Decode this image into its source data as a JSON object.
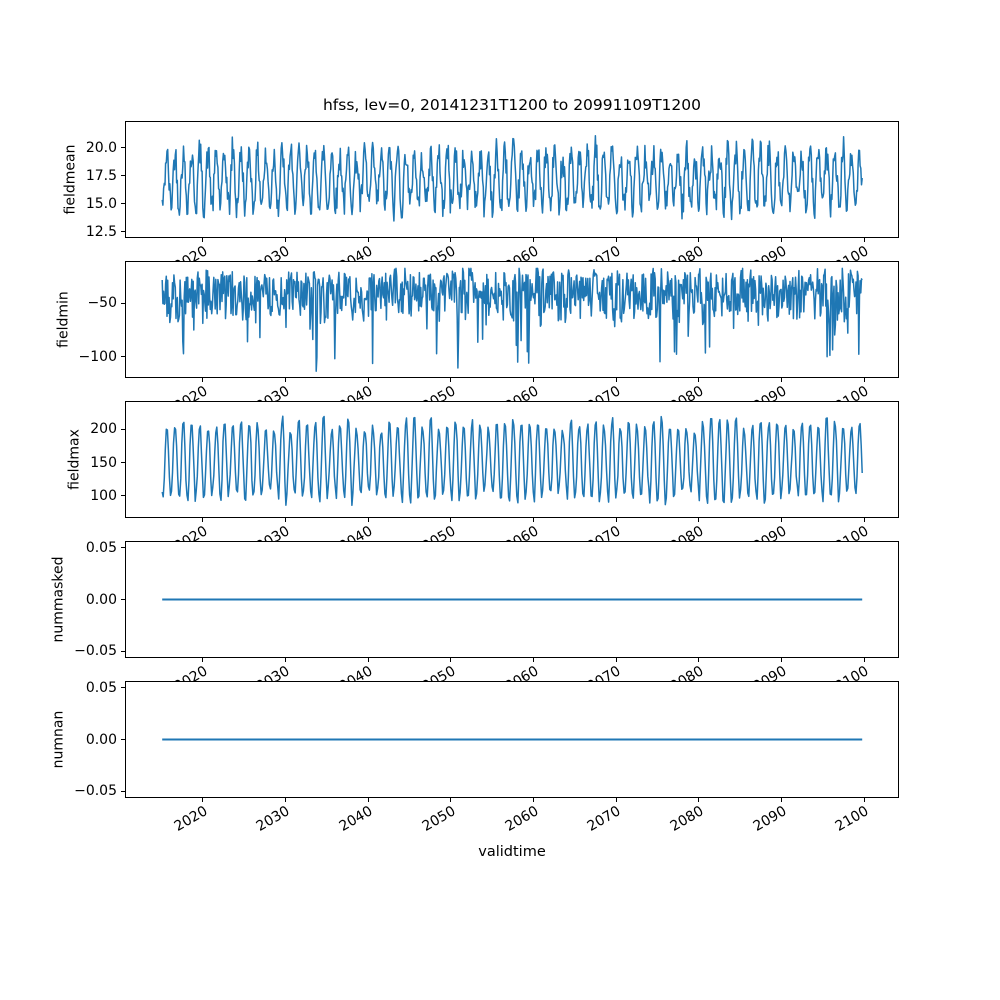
{
  "title": "hfss, lev=0, 20141231T1200 to 20991109T1200",
  "xlabel": "validtime",
  "colors": {
    "line": "#1f77b4",
    "text": "#000000",
    "spine": "#000000",
    "background": "#ffffff"
  },
  "x_axis": {
    "lim": [
      2010.6,
      2104.2
    ],
    "data_start": 2014.99,
    "data_end": 2099.86,
    "ticks": [
      {
        "v": 2020,
        "label": "2020"
      },
      {
        "v": 2030,
        "label": "2030"
      },
      {
        "v": 2040,
        "label": "2040"
      },
      {
        "v": 2050,
        "label": "2050"
      },
      {
        "v": 2060,
        "label": "2060"
      },
      {
        "v": 2070,
        "label": "2070"
      },
      {
        "v": 2080,
        "label": "2080"
      },
      {
        "v": 2090,
        "label": "2090"
      },
      {
        "v": 2100,
        "label": "2100"
      }
    ]
  },
  "chart_data": [
    {
      "type": "line",
      "ylabel": "fieldmean",
      "ylim": [
        11.95,
        22.4
      ],
      "yticks": [
        {
          "v": 20.0,
          "label": "20.0"
        },
        {
          "v": 17.5,
          "label": "17.5"
        },
        {
          "v": 15.0,
          "label": "15.0"
        },
        {
          "v": 12.5,
          "label": "12.5"
        }
      ],
      "series": {
        "name": "fieldmean",
        "model": "seasonal_noise",
        "seed": 42,
        "points_per_year": 12,
        "base": 17.2,
        "season_amp": 1.9,
        "season_amp_jitter": 0.9,
        "season_phase": 0.3,
        "band": 0,
        "band_pow": 1,
        "noise": 1.3,
        "spike_prob": 0,
        "spike_base": 0,
        "spike_scale": 0,
        "clamp": [
          12.7,
          21.8
        ]
      }
    },
    {
      "type": "line",
      "ylabel": "fieldmin",
      "ylim": [
        -119.5,
        -11.0
      ],
      "yticks": [
        {
          "v": -50,
          "label": "−50"
        },
        {
          "v": -100,
          "label": "−100"
        }
      ],
      "series": {
        "name": "fieldmin",
        "model": "seasonal_noise",
        "seed": 7,
        "points_per_year": 12,
        "base": -22,
        "season_amp": 3,
        "season_amp_jitter": 2,
        "season_phase": 0.1,
        "band": -46,
        "band_pow": 1.4,
        "noise": 4,
        "spike_prob": 0.05,
        "spike_base": -12,
        "spike_scale": -48,
        "clamp": [
          -114,
          -17
        ]
      }
    },
    {
      "type": "line",
      "ylabel": "fieldmax",
      "ylim": [
        67,
        242
      ],
      "yticks": [
        {
          "v": 200,
          "label": "200"
        },
        {
          "v": 150,
          "label": "150"
        },
        {
          "v": 100,
          "label": "100"
        }
      ],
      "series": {
        "name": "fieldmax",
        "model": "seasonal_noise",
        "seed": 13,
        "points_per_year": 8,
        "base": 153,
        "season_amp": 46,
        "season_amp_jitter": 22,
        "season_phase": 0.3,
        "band": 0,
        "band_pow": 1,
        "noise": 7,
        "spike_prob": 0,
        "spike_base": 0,
        "spike_scale": 0,
        "clamp": [
          75,
          236
        ]
      }
    },
    {
      "type": "line",
      "ylabel": "nummasked",
      "ylim": [
        -0.0567,
        0.0567
      ],
      "yticks": [
        {
          "v": 0.05,
          "label": "0.05"
        },
        {
          "v": 0.0,
          "label": "0.00"
        },
        {
          "v": -0.05,
          "label": "−0.05"
        }
      ],
      "series": {
        "name": "nummasked",
        "model": "constant",
        "seed": 1,
        "points_per_year": 1,
        "base": 0,
        "season_amp": 0,
        "season_amp_jitter": 0,
        "season_phase": 0,
        "band": 0,
        "band_pow": 1,
        "noise": 0,
        "spike_prob": 0,
        "spike_base": 0,
        "spike_scale": 0,
        "clamp": [
          0,
          0
        ]
      }
    },
    {
      "type": "line",
      "ylabel": "numnan",
      "ylim": [
        -0.0567,
        0.0567
      ],
      "yticks": [
        {
          "v": 0.05,
          "label": "0.05"
        },
        {
          "v": 0.0,
          "label": "0.00"
        },
        {
          "v": -0.05,
          "label": "−0.05"
        }
      ],
      "series": {
        "name": "numnan",
        "model": "constant",
        "seed": 2,
        "points_per_year": 1,
        "base": 0,
        "season_amp": 0,
        "season_amp_jitter": 0,
        "season_phase": 0,
        "band": 0,
        "band_pow": 1,
        "noise": 0,
        "spike_prob": 0,
        "spike_base": 0,
        "spike_scale": 0,
        "clamp": [
          0,
          0
        ]
      }
    }
  ]
}
